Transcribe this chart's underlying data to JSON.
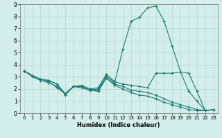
{
  "title": "",
  "xlabel": "Humidex (Indice chaleur)",
  "xlim": [
    -0.5,
    23.5
  ],
  "ylim": [
    0,
    9
  ],
  "xticks": [
    0,
    1,
    2,
    3,
    4,
    5,
    6,
    7,
    8,
    9,
    10,
    11,
    12,
    13,
    14,
    15,
    16,
    17,
    18,
    19,
    20,
    21,
    22,
    23
  ],
  "yticks": [
    0,
    1,
    2,
    3,
    4,
    5,
    6,
    7,
    8,
    9
  ],
  "line_color": "#1a7a6e",
  "bg_color": "#d4eeeb",
  "grid_color": "#b0d8d4",
  "lines": [
    {
      "x": [
        0,
        1,
        2,
        3,
        4,
        5,
        6,
        7,
        8,
        9,
        10,
        11,
        12,
        13,
        14,
        15,
        16,
        17,
        18,
        19,
        20,
        21,
        22,
        23
      ],
      "y": [
        3.5,
        3.1,
        2.8,
        2.7,
        2.4,
        1.5,
        2.2,
        2.2,
        1.9,
        2.0,
        3.2,
        2.5,
        5.3,
        7.6,
        7.9,
        8.7,
        8.85,
        7.6,
        5.5,
        3.4,
        1.8,
        1.0,
        0.2,
        0.3
      ]
    },
    {
      "x": [
        0,
        1,
        2,
        3,
        4,
        5,
        6,
        7,
        8,
        9,
        10,
        11,
        12,
        13,
        14,
        15,
        16,
        17,
        18,
        19,
        20,
        21,
        22,
        23
      ],
      "y": [
        3.5,
        3.1,
        2.8,
        2.6,
        2.1,
        1.6,
        2.2,
        2.3,
        2.0,
        2.1,
        3.2,
        2.6,
        2.4,
        2.3,
        2.2,
        2.1,
        3.3,
        3.3,
        3.3,
        3.4,
        3.3,
        1.8,
        0.2,
        0.3
      ]
    },
    {
      "x": [
        0,
        1,
        2,
        3,
        4,
        5,
        6,
        7,
        8,
        9,
        10,
        11,
        12,
        13,
        14,
        15,
        16,
        17,
        18,
        19,
        20,
        21,
        22,
        23
      ],
      "y": [
        3.5,
        3.1,
        2.8,
        2.7,
        2.4,
        1.6,
        2.2,
        2.2,
        1.9,
        1.9,
        3.0,
        2.4,
        2.2,
        1.9,
        1.8,
        1.7,
        1.5,
        1.2,
        0.9,
        0.7,
        0.5,
        0.3,
        0.2,
        0.3
      ]
    },
    {
      "x": [
        0,
        1,
        2,
        3,
        4,
        5,
        6,
        7,
        8,
        9,
        10,
        11,
        12,
        13,
        14,
        15,
        16,
        17,
        18,
        19,
        20,
        21,
        22,
        23
      ],
      "y": [
        3.5,
        3.0,
        2.7,
        2.5,
        2.2,
        1.6,
        2.2,
        2.1,
        1.9,
        1.8,
        2.9,
        2.3,
        2.0,
        1.7,
        1.5,
        1.4,
        1.2,
        0.9,
        0.7,
        0.5,
        0.3,
        0.2,
        0.2,
        0.3
      ]
    }
  ]
}
